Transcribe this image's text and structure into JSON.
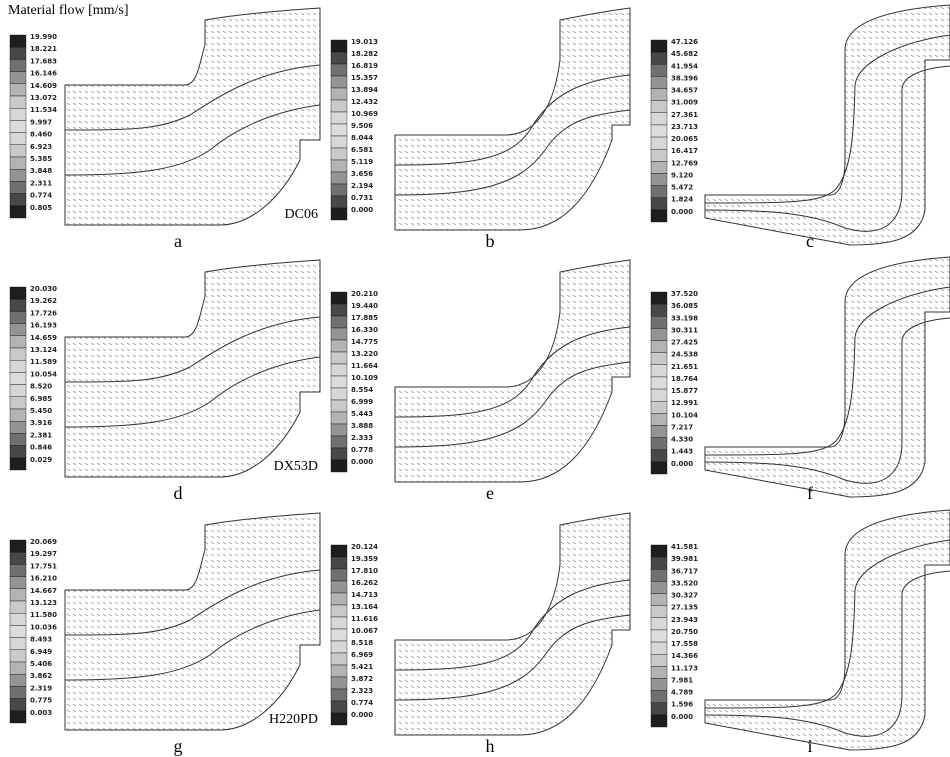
{
  "title": "Material flow [mm/s]",
  "panels": [
    {
      "label": "a",
      "material": "DC06",
      "scale": [
        "19.990",
        "18.221",
        "17.683",
        "16.146",
        "14.609",
        "13.072",
        "11.534",
        "9.997",
        "8.460",
        "6.923",
        "5.385",
        "3.848",
        "2.311",
        "0.774",
        "0.805"
      ]
    },
    {
      "label": "b",
      "scale": [
        "19.013",
        "18.282",
        "16.819",
        "15.357",
        "13.894",
        "12.432",
        "10.969",
        "9.506",
        "8.044",
        "6.581",
        "5.119",
        "3.656",
        "2.194",
        "0.731",
        "0.000"
      ]
    },
    {
      "label": "c",
      "scale": [
        "47.126",
        "45.682",
        "41.954",
        "38.396",
        "34.657",
        "31.009",
        "27.361",
        "23.713",
        "20.065",
        "16.417",
        "12.769",
        "9.120",
        "5.472",
        "1.824",
        "0.000"
      ]
    },
    {
      "label": "d",
      "material": "DX53D",
      "scale": [
        "20.030",
        "19.262",
        "17.726",
        "16.193",
        "14.659",
        "13.124",
        "11.589",
        "10.054",
        "8.520",
        "6.985",
        "5.450",
        "3.916",
        "2.381",
        "0.846",
        "0.029"
      ]
    },
    {
      "label": "e",
      "scale": [
        "20.210",
        "19.440",
        "17.885",
        "16.330",
        "14.775",
        "13.220",
        "11.664",
        "10.109",
        "8.554",
        "6.999",
        "5.443",
        "3.888",
        "2.333",
        "0.778",
        "0.000"
      ]
    },
    {
      "label": "f",
      "scale": [
        "37.520",
        "36.085",
        "33.198",
        "30.311",
        "27.425",
        "24.538",
        "21.651",
        "18.764",
        "15.877",
        "12.991",
        "10.104",
        "7.217",
        "4.330",
        "1.443",
        "0.000"
      ]
    },
    {
      "label": "g",
      "material": "H220PD",
      "scale": [
        "20.069",
        "19.297",
        "17.751",
        "16.210",
        "14.667",
        "13.123",
        "11.580",
        "10.036",
        "8.493",
        "6.949",
        "5.406",
        "3.862",
        "2.319",
        "0.775",
        "0.003"
      ]
    },
    {
      "label": "h",
      "scale": [
        "20.124",
        "19.359",
        "17.810",
        "16.262",
        "14.713",
        "13.164",
        "11.616",
        "10.067",
        "8.518",
        "6.969",
        "5.421",
        "3.872",
        "2.323",
        "0.774",
        "0.000"
      ]
    },
    {
      "label": "i",
      "scale": [
        "41.581",
        "39.981",
        "36.717",
        "33.520",
        "30.327",
        "27.135",
        "23.943",
        "20.750",
        "17.558",
        "14.366",
        "11.173",
        "7.981",
        "4.789",
        "1.596",
        "0.000"
      ]
    }
  ]
}
